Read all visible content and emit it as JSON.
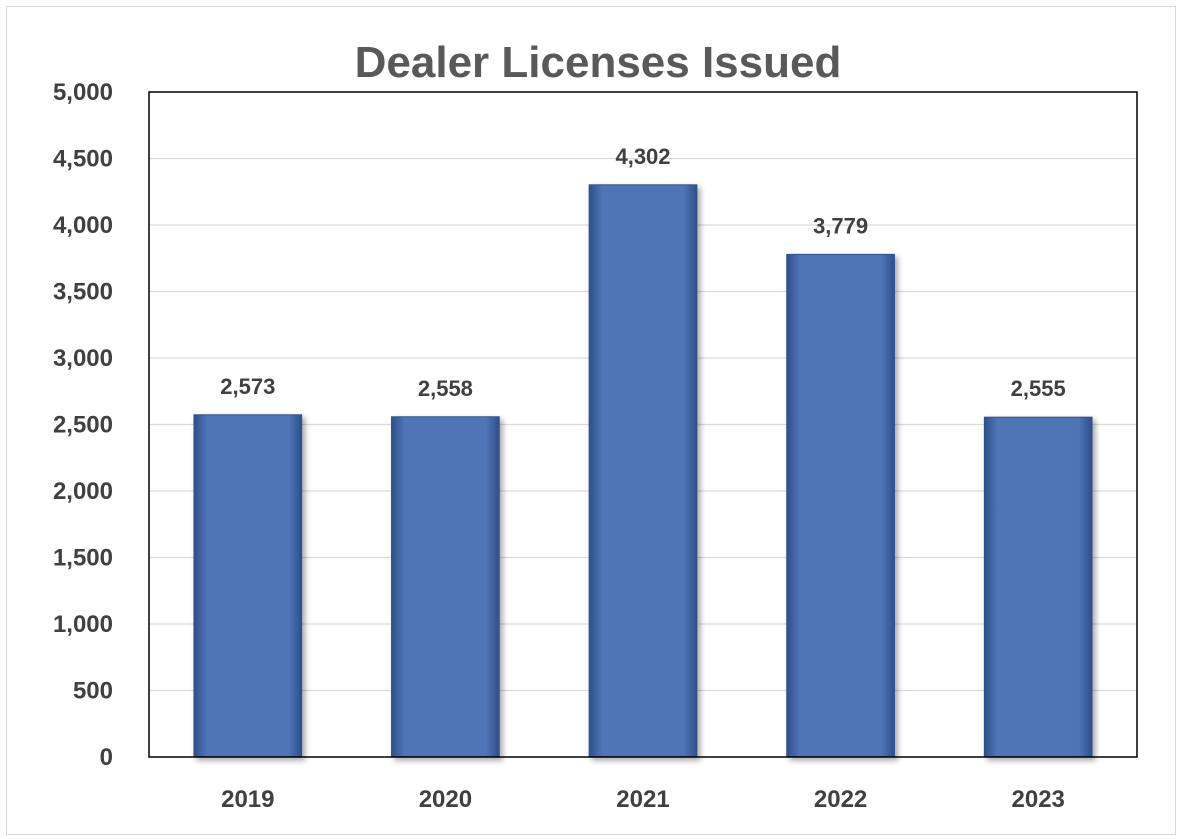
{
  "chart_data": {
    "type": "bar",
    "title": "Dealer Licenses Issued",
    "xlabel": "",
    "ylabel": "",
    "categories": [
      "2019",
      "2020",
      "2021",
      "2022",
      "2023"
    ],
    "values": [
      2573,
      2558,
      4302,
      3779,
      2555
    ],
    "data_labels": [
      "2,573",
      "2,558",
      "4,302",
      "3,779",
      "2,555"
    ],
    "ylim": [
      0,
      5000
    ],
    "y_ticks": [
      0,
      500,
      1000,
      1500,
      2000,
      2500,
      3000,
      3500,
      4000,
      4500,
      5000
    ],
    "y_tick_labels": [
      "0",
      "500",
      "1,000",
      "1,500",
      "2,000",
      "2,500",
      "3,000",
      "3,500",
      "4,000",
      "4,500",
      "5,000"
    ],
    "grid": true,
    "legend": "none",
    "colors": {
      "bar": "#4f74b6",
      "bar_edge": "#2f4f8a",
      "grid": "#d9d9d9",
      "axis": "#000000",
      "text": "#404040",
      "title": "#595959"
    }
  }
}
